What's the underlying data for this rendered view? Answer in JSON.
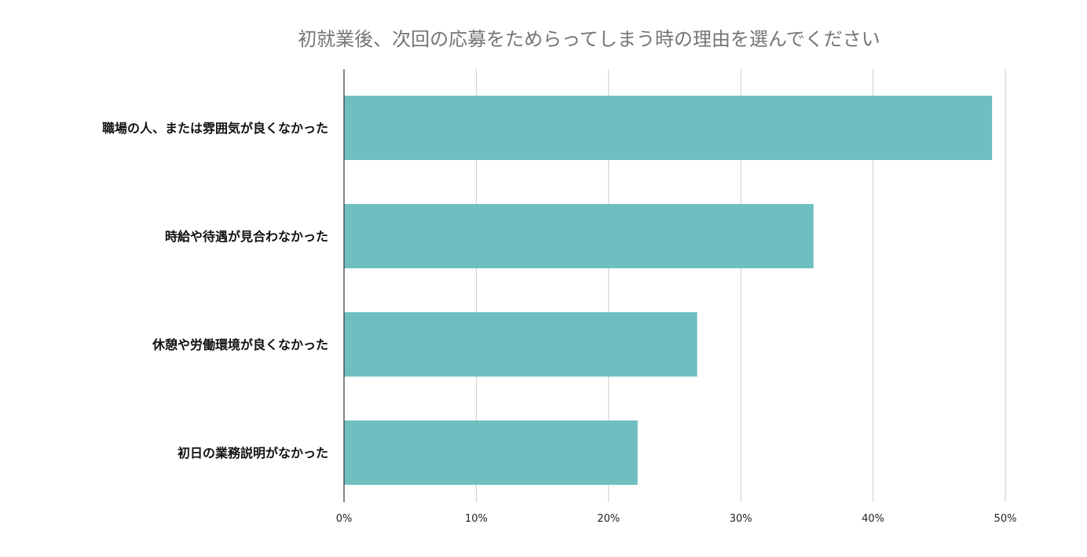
{
  "chart_data": {
    "type": "bar",
    "orientation": "horizontal",
    "title": "初就業後、次回の応募をためらってしまう時の理由を選んでください",
    "categories": [
      "職場の人、または雰囲気が良くなかった",
      "時給や待遇が見合わなかった",
      "休憩や労働環境が良くなかった",
      "初日の業務説明がなかった"
    ],
    "values": [
      49,
      35.5,
      26.7,
      22.2
    ],
    "xlim": [
      0,
      50
    ],
    "xticks": [
      0,
      10,
      20,
      30,
      40,
      50
    ],
    "xtick_labels": [
      "0%",
      "10%",
      "20%",
      "30%",
      "40%",
      "50%"
    ],
    "xlabel": "",
    "ylabel": "",
    "grid": true,
    "legend": "none",
    "bar_color": "#6fbfc1"
  }
}
